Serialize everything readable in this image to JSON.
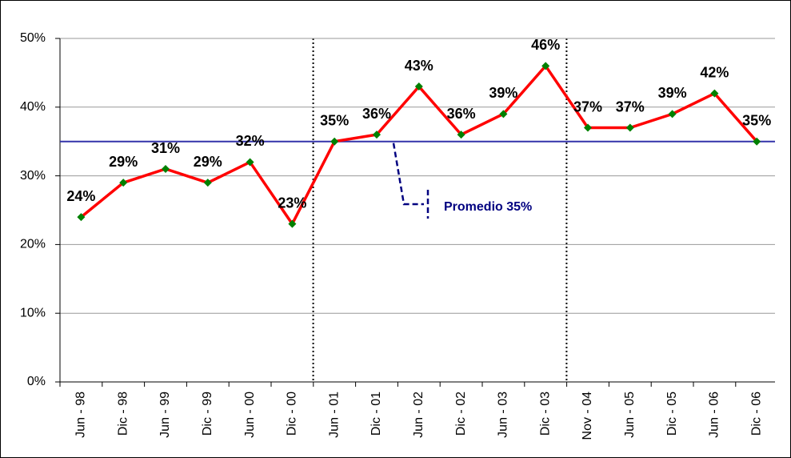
{
  "chart_data": {
    "type": "line",
    "categories": [
      "Jun - 98",
      "Dic - 98",
      "Jun - 99",
      "Dic - 99",
      "Jun - 00",
      "Dic - 00",
      "Jun - 01",
      "Dic - 01",
      "Jun - 02",
      "Dic - 02",
      "Jun - 03",
      "Dic - 03",
      "Nov - 04",
      "Jun - 05",
      "Dic - 05",
      "Jun - 06",
      "Dic - 06"
    ],
    "series": [
      {
        "color": "#ff0000",
        "marker_color": "#008000",
        "values": [
          24,
          29,
          31,
          29,
          32,
          23,
          35,
          36,
          43,
          36,
          39,
          46,
          37,
          37,
          39,
          42,
          35
        ],
        "value_labels": [
          "24%",
          "29%",
          "31%",
          "29%",
          "32%",
          "23%",
          "35%",
          "36%",
          "43%",
          "36%",
          "39%",
          "46%",
          "37%",
          "37%",
          "39%",
          "42%",
          "35%"
        ]
      }
    ],
    "average": {
      "value": 35,
      "color": "#3333aa",
      "label": "Promedio 35%"
    },
    "ylim": [
      0,
      50
    ],
    "yticks": [
      {
        "value": 0,
        "label": "0%"
      },
      {
        "value": 10,
        "label": "10%"
      },
      {
        "value": 20,
        "label": "20%"
      },
      {
        "value": 30,
        "label": "30%"
      },
      {
        "value": 40,
        "label": "40%"
      },
      {
        "value": 50,
        "label": "50%"
      }
    ],
    "grid": true
  }
}
